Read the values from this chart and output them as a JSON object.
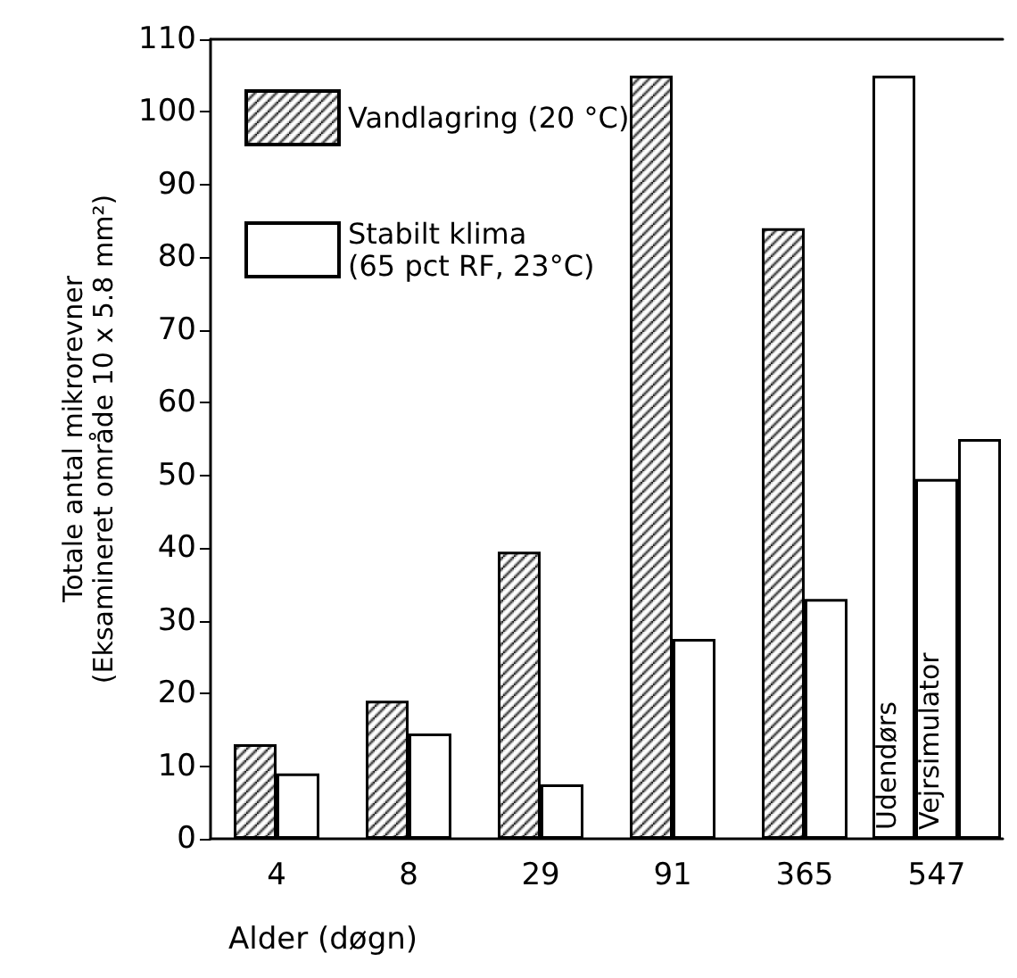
{
  "chart_data": {
    "type": "bar",
    "xlabel": "Alder (døgn)",
    "ylabel": "Totale antal mikrorevner\n(Eksamineret område 10 x 5.8 mm²)",
    "categories": [
      "4",
      "8",
      "29",
      "91",
      "365",
      "547"
    ],
    "series": [
      {
        "name": "Vandlagring (20 °C)",
        "color": "#000000",
        "values": [
          13,
          19,
          39.5,
          105,
          84,
          null
        ]
      },
      {
        "name": "Stabilt klima\n(65 pct RF, 23°C)",
        "color": "#ffffff",
        "values": [
          9,
          14.5,
          7.5,
          27.5,
          33,
          null
        ]
      },
      {
        "name": "Udendørs",
        "color": "#ffffff",
        "x": [
          "547"
        ],
        "values": [
          105
        ]
      },
      {
        "name": "Vejrsimulator",
        "color": "#ffffff",
        "x": [
          "547"
        ],
        "values": [
          49.5
        ]
      },
      {
        "color": "#ffffff",
        "x": [
          "547"
        ],
        "values": [
          55
        ]
      }
    ],
    "ylim": [
      0,
      110
    ],
    "yticks": [
      0,
      10,
      20,
      30,
      40,
      50,
      60,
      70,
      80,
      90,
      100,
      110
    ],
    "grid": false,
    "legend": "top left"
  }
}
